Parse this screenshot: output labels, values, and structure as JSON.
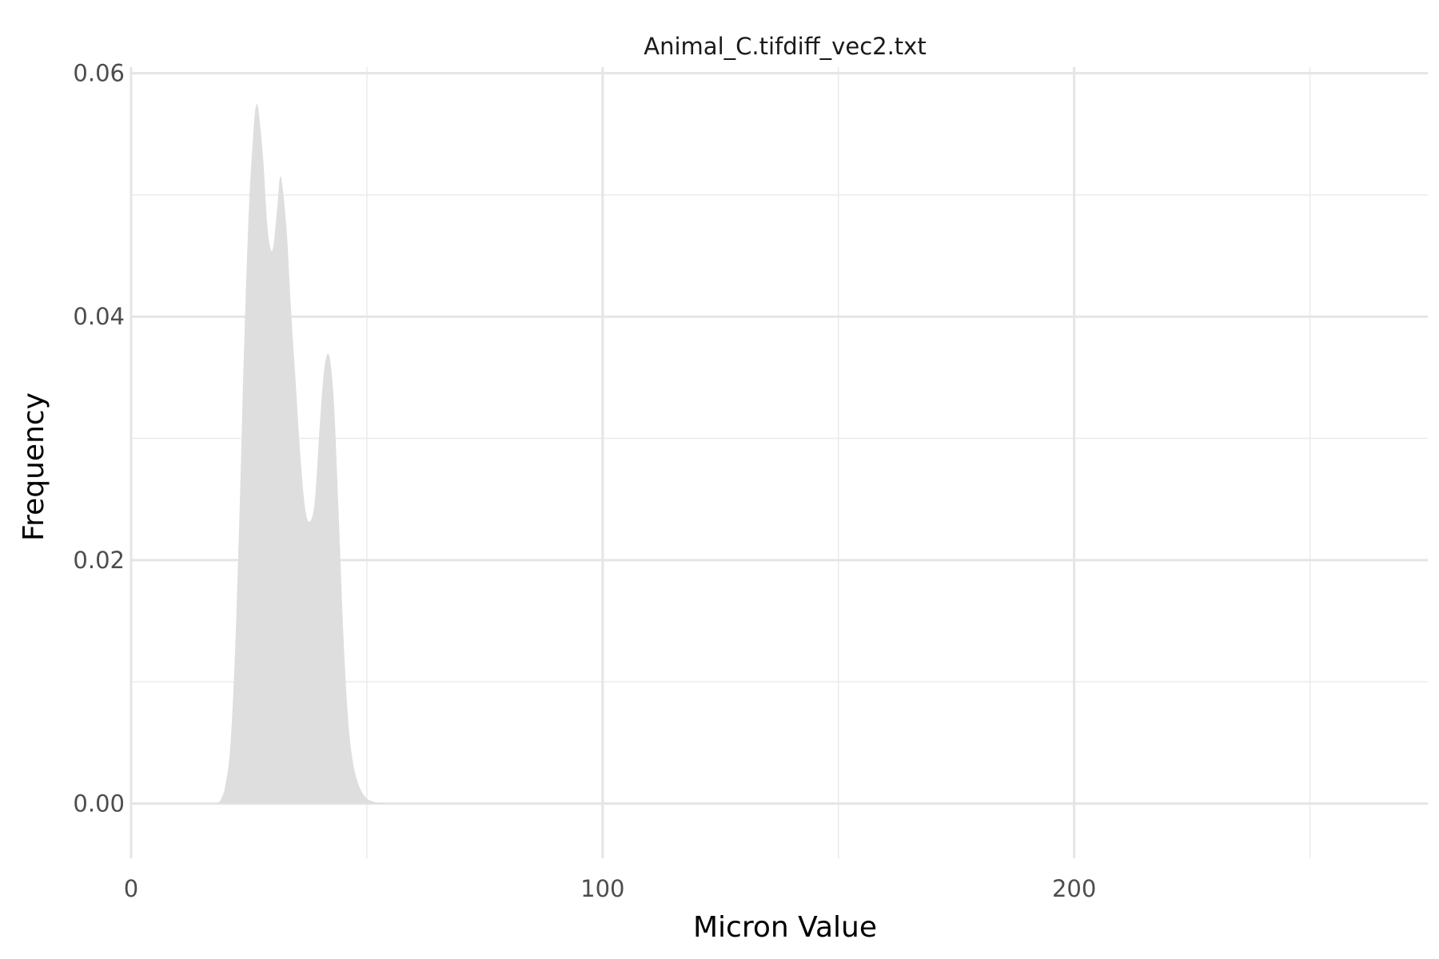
{
  "chart_data": {
    "type": "area",
    "title": "Animal_C.tifdiff_vec2.txt",
    "xlabel": "Micron Value",
    "ylabel": "Frequency",
    "xlim": [
      0,
      275
    ],
    "ylim": [
      -0.0045,
      0.0605
    ],
    "x_ticks": [
      {
        "value": 0,
        "label": "0"
      },
      {
        "value": 100,
        "label": "100"
      },
      {
        "value": 200,
        "label": "200"
      }
    ],
    "x_minor_ticks": [
      50,
      150,
      250
    ],
    "y_ticks": [
      {
        "value": 0,
        "label": "0.00"
      },
      {
        "value": 0.02,
        "label": "0.02"
      },
      {
        "value": 0.04,
        "label": "0.04"
      },
      {
        "value": 0.06,
        "label": "0.06"
      }
    ],
    "y_minor_ticks": [
      0.01,
      0.03,
      0.05
    ],
    "grid": true,
    "fill_color": "#dedede",
    "series": [
      {
        "x": [
          18,
          19,
          20,
          21,
          22,
          23,
          24,
          25,
          26,
          26.5,
          27,
          28,
          29,
          30,
          31,
          31.5,
          32,
          33,
          34,
          35,
          36,
          37,
          38,
          39,
          40,
          41,
          42,
          43,
          44,
          45,
          46,
          47,
          48,
          49,
          50,
          51,
          52,
          53,
          54
        ],
        "y": [
          0.0,
          0.0003,
          0.0015,
          0.0045,
          0.012,
          0.024,
          0.038,
          0.049,
          0.0555,
          0.0573,
          0.057,
          0.053,
          0.047,
          0.0455,
          0.049,
          0.0513,
          0.051,
          0.047,
          0.04,
          0.034,
          0.028,
          0.024,
          0.0232,
          0.025,
          0.031,
          0.0358,
          0.0368,
          0.033,
          0.024,
          0.014,
          0.007,
          0.0035,
          0.0018,
          0.0009,
          0.0004,
          0.0002,
          0.0001,
          5e-05,
          0.0
        ]
      }
    ]
  }
}
